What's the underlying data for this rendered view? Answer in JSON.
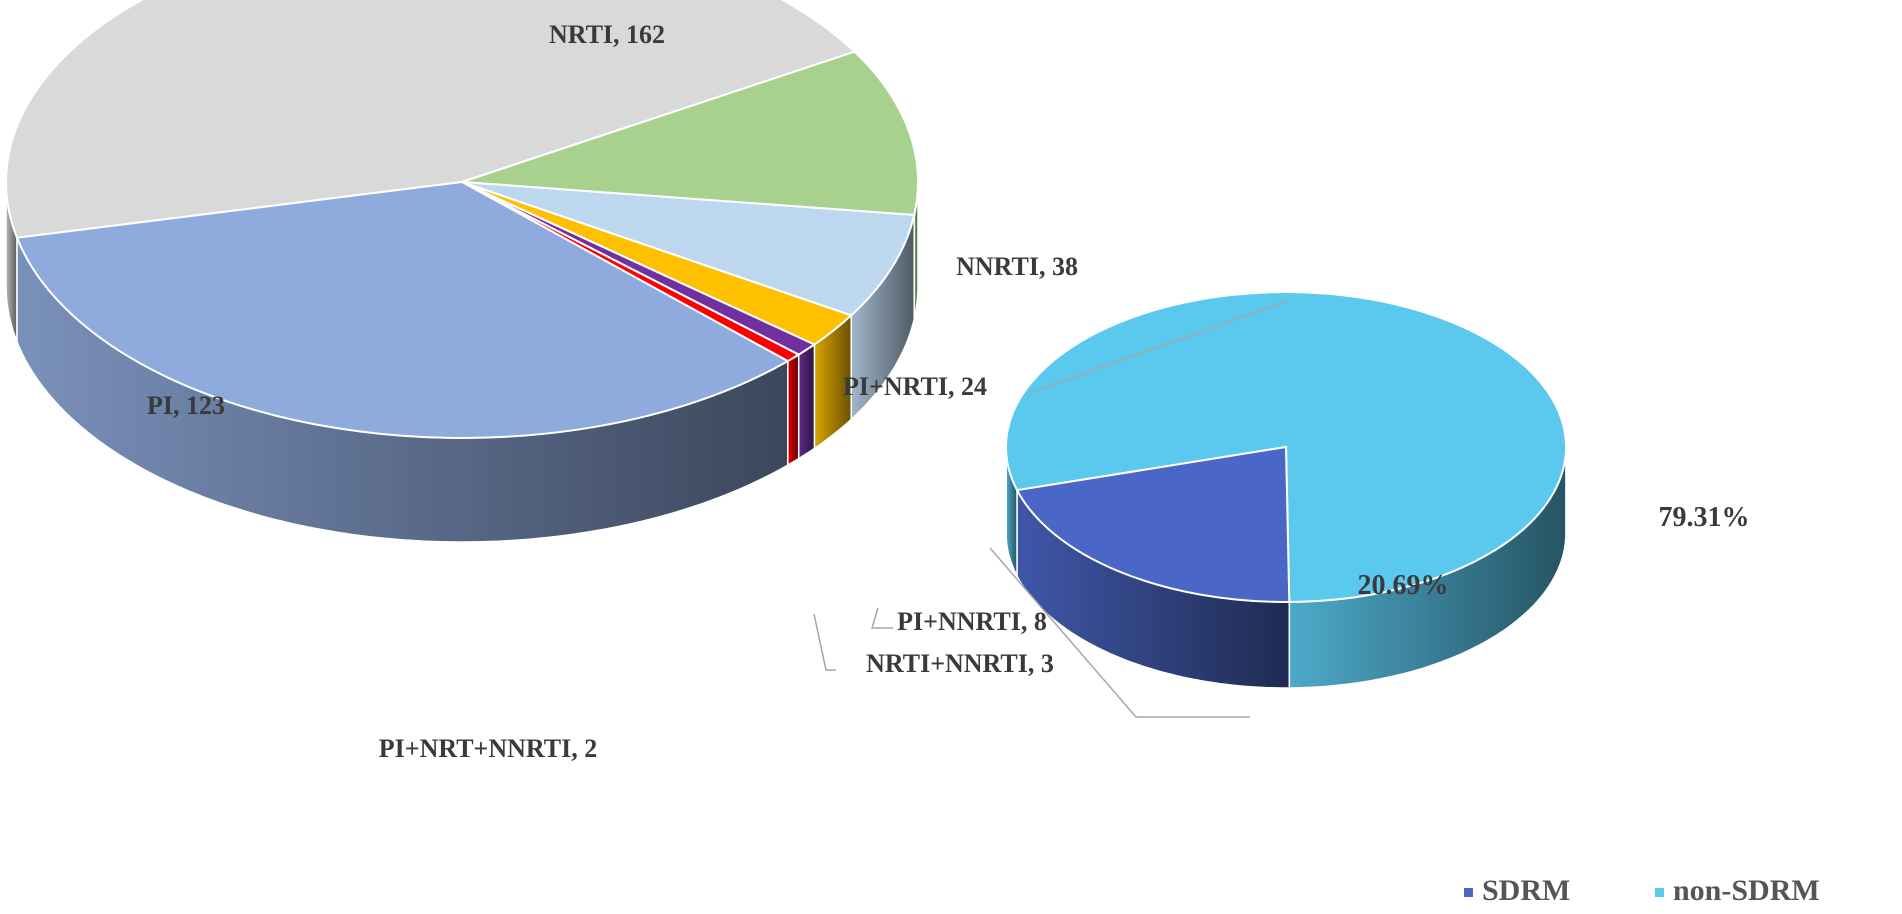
{
  "chart_data": {
    "type": "pie",
    "pies": [
      {
        "slices": [
          {
            "label": "NRTI",
            "value": 162,
            "color": "#d9d9d9"
          },
          {
            "label": "NNRTI",
            "value": 38,
            "color": "#a9d18e"
          },
          {
            "label": "PI+NRTI",
            "value": 24,
            "color": "#bdd7ee"
          },
          {
            "label": "PI+NNRTI",
            "value": 8,
            "color": "#ffc000"
          },
          {
            "label": "NRTI+NNRTI",
            "value": 3,
            "color": "#7030a0"
          },
          {
            "label": "PI+NRT+NNRTI",
            "value": 2,
            "color": "#ff0000"
          },
          {
            "label": "PI",
            "value": 123,
            "color": "#8faadc"
          }
        ],
        "data_labels": [
          {
            "slice": 0,
            "text": "NRTI, 162"
          },
          {
            "slice": 1,
            "text": "NNRTI, 38"
          },
          {
            "slice": 2,
            "text": "PI+NRTI, 24"
          },
          {
            "slice": 3,
            "text": "PI+NNRTI, 8"
          },
          {
            "slice": 4,
            "text": "NRTI+NNRTI, 3"
          },
          {
            "slice": 5,
            "text": "PI+NRT+NNRTI, 2"
          },
          {
            "slice": 6,
            "text": "PI, 123"
          }
        ]
      },
      {
        "slices": [
          {
            "label": "non-SDRM",
            "value": 79.31,
            "color": "#5bc8ee",
            "display": "79.31%"
          },
          {
            "label": "SDRM",
            "value": 20.69,
            "color": "#4a66c6",
            "display": "20.69%"
          }
        ]
      }
    ],
    "legend": {
      "placement": "bottom-right",
      "entries": [
        {
          "label": "SDRM",
          "color": "#4a66c6"
        },
        {
          "label": "non-SDRM",
          "color": "#5bc8ee"
        }
      ]
    }
  }
}
